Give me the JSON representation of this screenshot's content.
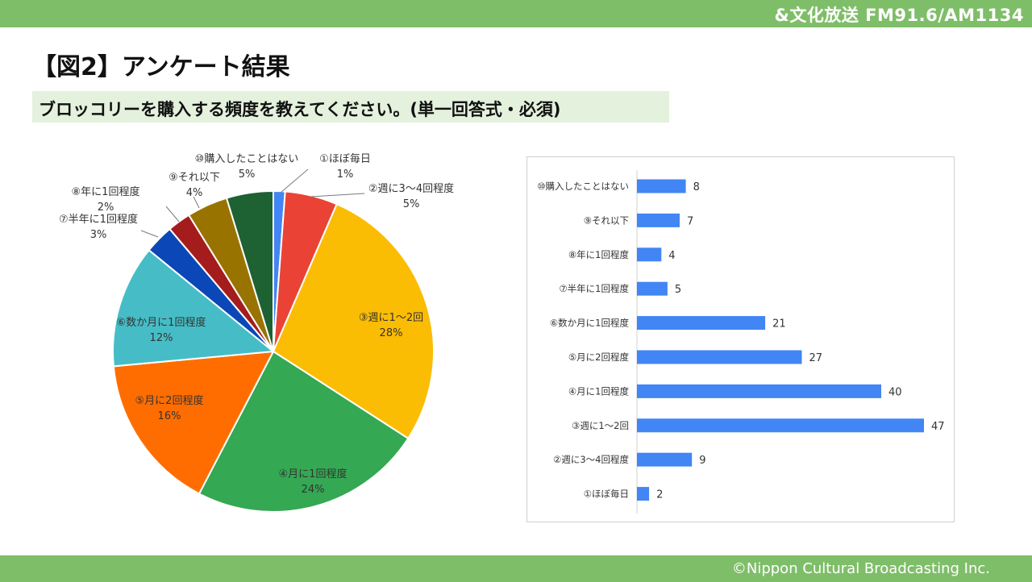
{
  "header": {
    "station": "&文化放送 FM91.6/AM1134"
  },
  "title": "【図2】アンケート結果",
  "question": "ブロッコリーを購入する頻度を教えてください。(単一回答式・必須)",
  "footer": {
    "copyright": "©Nippon Cultural Broadcasting Inc."
  },
  "chart_data": [
    {
      "type": "pie",
      "start": "top",
      "direction": "clockwise",
      "slices": [
        {
          "label": "①ほぼ毎日",
          "percent_label": "1%",
          "value": 2,
          "color": "#4285f4"
        },
        {
          "label": "②週に3～4回程度",
          "percent_label": "5%",
          "value": 9,
          "color": "#ea4335"
        },
        {
          "label": "③週に1～2回",
          "percent_label": "28%",
          "value": 47,
          "color": "#fbbc04"
        },
        {
          "label": "④月に1回程度",
          "percent_label": "24%",
          "value": 40,
          "color": "#34a853"
        },
        {
          "label": "⑤月に2回程度",
          "percent_label": "16%",
          "value": 27,
          "color": "#ff6d01"
        },
        {
          "label": "⑥数か月に1回程度",
          "percent_label": "12%",
          "value": 21,
          "color": "#46bdc6"
        },
        {
          "label": "⑦半年に1回程度",
          "percent_label": "3%",
          "value": 5,
          "color": "#0b47b7"
        },
        {
          "label": "⑧年に1回程度",
          "percent_label": "2%",
          "value": 4,
          "color": "#a51c1c"
        },
        {
          "label": "⑨それ以下",
          "percent_label": "4%",
          "value": 7,
          "color": "#997300"
        },
        {
          "label": "⑩購入したことはない",
          "percent_label": "5%",
          "value": 8,
          "color": "#1e6133"
        }
      ]
    },
    {
      "type": "bar",
      "orientation": "horizontal",
      "categories": [
        "⑩購入したことはない",
        "⑨それ以下",
        "⑧年に1回程度",
        "⑦半年に1回程度",
        "⑥数か月に1回程度",
        "⑤月に2回程度",
        "④月に1回程度",
        "③週に1～2回",
        "②週に3～4回程度",
        "①ほぼ毎日"
      ],
      "values": [
        8,
        7,
        4,
        5,
        21,
        27,
        40,
        47,
        9,
        2
      ],
      "color": "#4285f4",
      "xlim": [
        0,
        47
      ]
    }
  ]
}
